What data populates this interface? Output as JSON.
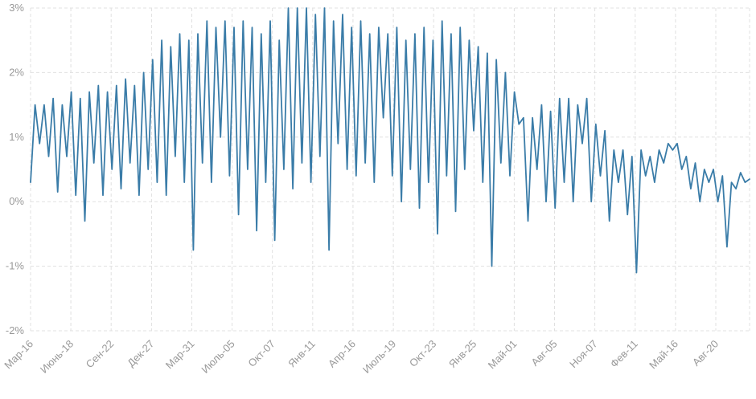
{
  "chart_data": {
    "type": "line",
    "title": "",
    "xlabel": "",
    "ylabel": "",
    "legend": "none",
    "grid": "dashed",
    "line_color": "#3a7ca8",
    "label_color": "#999999",
    "grid_color": "#e0e0e0",
    "ylim": [
      -2,
      3
    ],
    "y_ticks": [
      3,
      2,
      1,
      0,
      -1,
      -2
    ],
    "y_tick_labels": [
      "3%",
      "2%",
      "1%",
      "0%",
      "-1%",
      "-2%"
    ],
    "x_tick_labels": [
      "Мар-16",
      "Июнь-18",
      "Сен-22",
      "Дек-27",
      "Мар-31",
      "Июль-05",
      "Окт-07",
      "Янв-11",
      "Апр-16",
      "Июль-19",
      "Окт-23",
      "Янв-25",
      "Май-01",
      "Авг-05",
      "Ноя-07",
      "Фев-11",
      "Май-16",
      "Авг-20"
    ],
    "values": [
      0.3,
      1.5,
      0.9,
      1.5,
      0.7,
      1.6,
      0.15,
      1.5,
      0.7,
      1.7,
      0.1,
      1.6,
      -0.3,
      1.7,
      0.6,
      1.8,
      0.1,
      1.7,
      0.5,
      1.8,
      0.2,
      1.9,
      0.6,
      1.8,
      0.1,
      2.0,
      0.5,
      2.2,
      0.3,
      2.5,
      0.1,
      2.4,
      0.7,
      2.6,
      0.3,
      2.5,
      -0.75,
      2.6,
      0.6,
      2.8,
      0.3,
      2.7,
      1.0,
      2.8,
      0.4,
      2.7,
      -0.2,
      2.8,
      0.5,
      2.7,
      -0.45,
      2.6,
      0.3,
      2.8,
      -0.6,
      2.5,
      0.5,
      3.0,
      0.2,
      3.0,
      0.6,
      3.0,
      0.3,
      2.9,
      0.7,
      3.0,
      -0.75,
      2.8,
      0.9,
      2.9,
      0.5,
      2.7,
      0.4,
      2.8,
      0.6,
      2.6,
      0.3,
      2.7,
      1.3,
      2.6,
      0.4,
      2.7,
      0.0,
      2.5,
      0.5,
      2.6,
      -0.1,
      2.7,
      0.3,
      2.5,
      -0.5,
      2.8,
      0.4,
      2.6,
      -0.15,
      2.7,
      0.5,
      2.5,
      1.1,
      2.4,
      0.3,
      2.3,
      -1.0,
      2.2,
      0.6,
      2.0,
      0.4,
      1.7,
      1.2,
      1.3,
      -0.3,
      1.3,
      0.5,
      1.5,
      0.0,
      1.4,
      -0.1,
      1.6,
      0.3,
      1.6,
      0.0,
      1.5,
      0.9,
      1.6,
      0.0,
      1.2,
      0.4,
      1.1,
      -0.3,
      0.8,
      0.3,
      0.8,
      -0.2,
      0.7,
      -1.1,
      0.8,
      0.4,
      0.7,
      0.3,
      0.8,
      0.6,
      0.9,
      0.8,
      0.9,
      0.5,
      0.7,
      0.2,
      0.6,
      0.0,
      0.5,
      0.3,
      0.5,
      0.0,
      0.4,
      -0.7,
      0.3,
      0.2,
      0.45,
      0.3,
      0.35
    ]
  }
}
